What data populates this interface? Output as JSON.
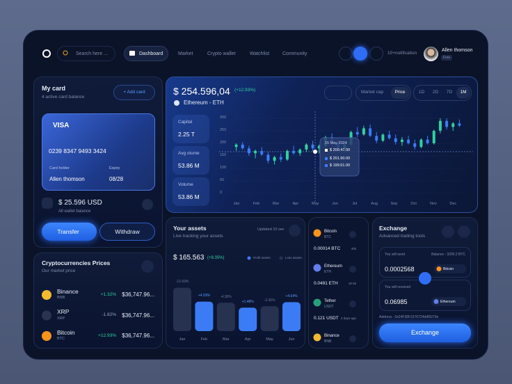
{
  "nav": {
    "search": "Search here ...",
    "items": [
      "Dashboard",
      "Market",
      "Crypto wallet",
      "Watchlist",
      "Community"
    ],
    "notification": "10+notification",
    "user": "Allen thomson",
    "plan": "Free"
  },
  "my_card": {
    "title": "My card",
    "subtitle": "4 active card balance",
    "add": "+ Add card",
    "brand": "VISA",
    "number": "0239  8347  9493  3424",
    "holder_label": "Card holder",
    "holder": "Allen thomson",
    "expiry_label": "Expiry",
    "expiry": "08/28",
    "balance": "$ 25.596 USD",
    "balance_label": "All wallet balance",
    "transfer": "Transfer",
    "withdraw": "Withdraw"
  },
  "crypto_prices": {
    "title": "Cryptocurrencies Prices",
    "subtitle": "Our market price",
    "rows": [
      {
        "name": "Binance",
        "symbol": "BNB",
        "change": "+1.32%",
        "price": "$36,747.96..."
      },
      {
        "name": "XRP",
        "symbol": "XRP",
        "change": "-1.82%",
        "price": "$36,747.96..."
      },
      {
        "name": "Bitcoin",
        "symbol": "BTC",
        "change": "+12.93%",
        "price": "$36,747.96..."
      }
    ]
  },
  "price_chart": {
    "type": "candlestick",
    "price": "$ 254.596,04",
    "change": "(+12.93%)",
    "asset": "Ethereum - ETH",
    "tabs": [
      "Market cap",
      "Price"
    ],
    "ranges": [
      "1D",
      "2D",
      "7D",
      "1M"
    ],
    "stats": [
      {
        "label": "Capital",
        "value": "2.25 T"
      },
      {
        "label": "Avg olume",
        "value": "53.86 M"
      },
      {
        "label": "Volume",
        "value": "53.86 M"
      }
    ],
    "categories": [
      "Jan",
      "Feb",
      "Mar",
      "Apr",
      "May",
      "Jun",
      "Jul",
      "Aug",
      "Sep",
      "Oct",
      "Nov",
      "Dec"
    ],
    "ylim": [
      0,
      300
    ],
    "yticks": [
      0,
      50,
      100,
      150,
      200,
      250,
      300
    ],
    "up_color": "#2ed3a0",
    "down_color": "#3b7cf6",
    "values": [
      [
        185,
        200,
        170,
        195
      ],
      [
        195,
        205,
        175,
        180
      ],
      [
        180,
        190,
        150,
        160
      ],
      [
        160,
        175,
        140,
        170
      ],
      [
        170,
        185,
        150,
        155
      ],
      [
        155,
        165,
        120,
        130
      ],
      [
        130,
        150,
        115,
        145
      ],
      [
        145,
        160,
        125,
        135
      ],
      [
        135,
        175,
        130,
        170
      ],
      [
        170,
        190,
        155,
        160
      ],
      [
        160,
        180,
        150,
        175
      ],
      [
        175,
        200,
        165,
        195
      ],
      [
        195,
        210,
        170,
        180
      ],
      [
        180,
        195,
        160,
        190
      ],
      [
        190,
        230,
        185,
        225
      ],
      [
        225,
        240,
        195,
        205
      ],
      [
        205,
        215,
        170,
        180
      ],
      [
        180,
        200,
        165,
        195
      ],
      [
        195,
        250,
        190,
        245
      ],
      [
        245,
        265,
        225,
        235
      ],
      [
        235,
        270,
        230,
        260
      ],
      [
        260,
        275,
        225,
        230
      ],
      [
        230,
        245,
        200,
        210
      ],
      [
        210,
        240,
        205,
        235
      ],
      [
        235,
        250,
        215,
        220
      ],
      [
        220,
        235,
        195,
        205
      ],
      [
        205,
        225,
        190,
        215
      ],
      [
        215,
        230,
        195,
        200
      ],
      [
        200,
        215,
        175,
        185
      ],
      [
        185,
        220,
        180,
        215
      ],
      [
        215,
        230,
        195,
        200
      ],
      [
        200,
        255,
        195,
        250
      ],
      [
        250,
        300,
        240,
        290
      ],
      [
        290,
        300,
        255,
        265
      ],
      [
        265,
        285,
        250,
        280
      ],
      [
        280,
        295,
        265,
        270
      ]
    ],
    "tooltip": {
      "date": "15 May 2024",
      "lines": [
        "$ 200.47.00",
        "$ 201.90.00",
        "$ 199.61.00"
      ]
    }
  },
  "assets": {
    "title": "Your assets",
    "subtitle": "Live tracking your assets",
    "updated": "Updated 10 sec",
    "total": "$ 165.563",
    "change": "(+8.35%)",
    "legend": [
      {
        "name": "Profit assets",
        "color": "#3b7cf6"
      },
      {
        "name": "Loss assets",
        "color": "#26324f"
      }
    ],
    "chart": {
      "type": "bar",
      "categories": [
        "Jan",
        "Feb",
        "Mar",
        "Apr",
        "May",
        "Jun"
      ],
      "values": [
        -12.93,
        4.93,
        -4.36,
        1.48,
        -2.36,
        4.64
      ],
      "value_labels": [
        "-12.93%",
        "+4.93%",
        "-4.36%",
        "+1.48%",
        "-2.36%",
        "+4.64%"
      ]
    }
  },
  "coin_list": [
    {
      "name": "Bitcoin",
      "symbol": "BTC",
      "amount": "0.00014 BTC",
      "note": "40k"
    },
    {
      "name": "Ethereum",
      "symbol": "ETH",
      "amount": "0.0491 ETH",
      "note": "20.5k"
    },
    {
      "name": "Tether",
      "symbol": "USDT",
      "amount": "0.121 USDT",
      "note": "2 days ago"
    },
    {
      "name": "Binance",
      "symbol": "BNB"
    }
  ],
  "exchange": {
    "title": "Exchange",
    "subtitle": "Advanced trading tools",
    "send_label": "You will send",
    "balance": "Balance : 3200.2 BTC",
    "send": "0.0002568",
    "send_coin": "Bitcoin",
    "receive_label": "You will received",
    "receive": "0.06985",
    "receive_coin": "Ethereum",
    "address": "Address :  0x24F38F1576724ddf9270e",
    "button": "Exchange"
  }
}
